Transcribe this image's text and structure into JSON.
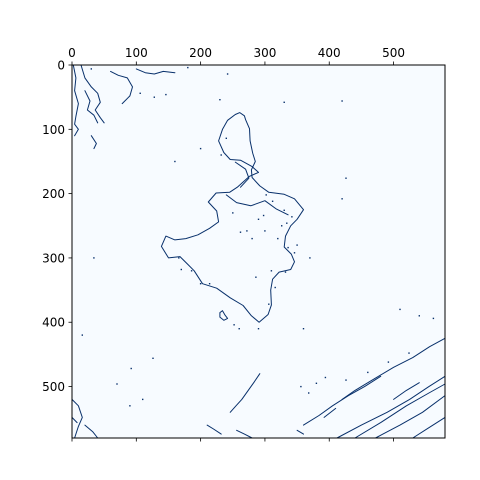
{
  "chart_data": {
    "type": "heatmap",
    "title": "",
    "xlabel": "",
    "ylabel": "",
    "xlim": [
      0,
      580
    ],
    "ylim": [
      580,
      0
    ],
    "x_ticks": [
      0,
      100,
      200,
      300,
      400,
      500
    ],
    "y_ticks": [
      0,
      100,
      200,
      300,
      400,
      500
    ],
    "x_tick_labels": [
      "0",
      "100",
      "200",
      "300",
      "400",
      "500"
    ],
    "y_tick_labels": [
      "0",
      "100",
      "200",
      "300",
      "400",
      "500"
    ],
    "x_axis_position": "top",
    "grid": false,
    "colormap": "Blues",
    "colors": {
      "background": "#f7fbff",
      "edge": "#08306b",
      "frame": "#000000"
    },
    "content": "binary edge-detection image (edge pixels dark blue on near-white)",
    "edge_paths": [
      {
        "name": "central-blob",
        "points": [
          [
            268,
            79
          ],
          [
            261,
            74
          ],
          [
            254,
            77
          ],
          [
            242,
            86
          ],
          [
            234,
            100
          ],
          [
            228,
            118
          ],
          [
            236,
            136
          ],
          [
            246,
            147
          ],
          [
            262,
            148
          ],
          [
            280,
            158
          ],
          [
            290,
            167
          ],
          [
            276,
            173
          ],
          [
            257,
            190
          ],
          [
            245,
            198
          ],
          [
            224,
            199
          ],
          [
            212,
            213
          ],
          [
            225,
            227
          ],
          [
            228,
            244
          ],
          [
            214,
            254
          ],
          [
            196,
            264
          ],
          [
            177,
            270
          ],
          [
            160,
            272
          ],
          [
            146,
            266
          ],
          [
            139,
            282
          ],
          [
            150,
            300
          ],
          [
            168,
            298
          ],
          [
            180,
            310
          ],
          [
            190,
            320
          ],
          [
            203,
            340
          ],
          [
            225,
            347
          ],
          [
            246,
            362
          ],
          [
            266,
            374
          ],
          [
            279,
            390
          ],
          [
            291,
            400
          ],
          [
            305,
            388
          ],
          [
            310,
            373
          ],
          [
            309,
            350
          ],
          [
            312,
            333
          ],
          [
            322,
            322
          ],
          [
            340,
            318
          ],
          [
            346,
            306
          ],
          [
            341,
            294
          ],
          [
            330,
            283
          ],
          [
            332,
            266
          ],
          [
            340,
            250
          ],
          [
            350,
            240
          ],
          [
            360,
            225
          ],
          [
            346,
            208
          ],
          [
            330,
            201
          ],
          [
            306,
            198
          ],
          [
            292,
            188
          ],
          [
            280,
            175
          ],
          [
            279,
            163
          ],
          [
            285,
            150
          ],
          [
            281,
            137
          ],
          [
            277,
            118
          ],
          [
            276,
            99
          ],
          [
            270,
            85
          ],
          [
            268,
            79
          ]
        ]
      },
      {
        "name": "blob-inner-1",
        "points": [
          [
            240,
            202
          ],
          [
            256,
            214
          ],
          [
            278,
            219
          ],
          [
            300,
            211
          ],
          [
            318,
            224
          ],
          [
            336,
            233
          ]
        ]
      },
      {
        "name": "blob-inner-2",
        "points": [
          [
            254,
            151
          ],
          [
            270,
            162
          ],
          [
            275,
            176
          ],
          [
            262,
            190
          ]
        ]
      },
      {
        "name": "blob-hole",
        "points": [
          [
            234,
            382
          ],
          [
            238,
            389
          ],
          [
            242,
            394
          ],
          [
            236,
            397
          ],
          [
            230,
            392
          ],
          [
            230,
            385
          ],
          [
            234,
            382
          ]
        ]
      },
      {
        "name": "top-left-1",
        "points": [
          [
            2,
            0
          ],
          [
            6,
            20
          ],
          [
            4,
            40
          ],
          [
            10,
            60
          ],
          [
            6,
            80
          ],
          [
            4,
            92
          ],
          [
            10,
            100
          ],
          [
            4,
            110
          ]
        ]
      },
      {
        "name": "top-left-2",
        "points": [
          [
            14,
            0
          ],
          [
            20,
            20
          ],
          [
            30,
            34
          ],
          [
            40,
            44
          ],
          [
            44,
            58
          ],
          [
            36,
            70
          ],
          [
            44,
            82
          ],
          [
            50,
            90
          ]
        ]
      },
      {
        "name": "top-left-3",
        "points": [
          [
            60,
            10
          ],
          [
            72,
            16
          ],
          [
            86,
            20
          ],
          [
            94,
            34
          ],
          [
            90,
            48
          ],
          [
            78,
            60
          ]
        ]
      },
      {
        "name": "top-left-4",
        "points": [
          [
            20,
            40
          ],
          [
            28,
            56
          ],
          [
            24,
            70
          ],
          [
            34,
            78
          ],
          [
            40,
            90
          ]
        ]
      },
      {
        "name": "top-left-5",
        "points": [
          [
            100,
            6
          ],
          [
            114,
            12
          ],
          [
            128,
            14
          ],
          [
            142,
            10
          ],
          [
            160,
            12
          ]
        ]
      },
      {
        "name": "top-left-6",
        "points": [
          [
            30,
            110
          ],
          [
            38,
            122
          ],
          [
            34,
            130
          ]
        ]
      },
      {
        "name": "bottom-right-1",
        "points": [
          [
            412,
            580
          ],
          [
            450,
            560
          ],
          [
            490,
            540
          ],
          [
            525,
            520
          ],
          [
            555,
            500
          ],
          [
            580,
            484
          ]
        ]
      },
      {
        "name": "bottom-right-2",
        "points": [
          [
            440,
            580
          ],
          [
            480,
            556
          ],
          [
            520,
            530
          ],
          [
            555,
            510
          ],
          [
            580,
            496
          ]
        ]
      },
      {
        "name": "bottom-right-3",
        "points": [
          [
            472,
            580
          ],
          [
            510,
            560
          ],
          [
            545,
            540
          ],
          [
            580,
            514
          ]
        ]
      },
      {
        "name": "bottom-right-4",
        "points": [
          [
            530,
            580
          ],
          [
            555,
            564
          ],
          [
            580,
            548
          ]
        ]
      },
      {
        "name": "bottom-right-5",
        "points": [
          [
            360,
            560
          ],
          [
            384,
            545
          ],
          [
            405,
            530
          ],
          [
            430,
            514
          ],
          [
            455,
            500
          ],
          [
            480,
            484
          ]
        ]
      },
      {
        "name": "bottom-right-6",
        "points": [
          [
            420,
            520
          ],
          [
            440,
            506
          ],
          [
            470,
            488
          ],
          [
            500,
            470
          ],
          [
            530,
            455
          ],
          [
            556,
            438
          ],
          [
            580,
            425
          ]
        ]
      },
      {
        "name": "bottom-right-7",
        "points": [
          [
            392,
            548
          ],
          [
            410,
            534
          ]
        ]
      },
      {
        "name": "bottom-right-8",
        "points": [
          [
            500,
            520
          ],
          [
            520,
            506
          ],
          [
            540,
            494
          ]
        ]
      },
      {
        "name": "bottom-left-1",
        "points": [
          [
            0,
            520
          ],
          [
            10,
            530
          ],
          [
            16,
            548
          ],
          [
            10,
            562
          ],
          [
            4,
            580
          ]
        ]
      },
      {
        "name": "bottom-left-2",
        "points": [
          [
            20,
            560
          ],
          [
            32,
            570
          ],
          [
            40,
            580
          ]
        ]
      },
      {
        "name": "bottom-left-3",
        "points": [
          [
            0,
            548
          ],
          [
            8,
            556
          ]
        ]
      },
      {
        "name": "bottom-mid-1",
        "points": [
          [
            292,
            480
          ],
          [
            284,
            492
          ],
          [
            274,
            506
          ],
          [
            264,
            520
          ],
          [
            255,
            530
          ],
          [
            246,
            540
          ]
        ]
      },
      {
        "name": "bottom-mid-2",
        "points": [
          [
            256,
            568
          ],
          [
            268,
            574
          ],
          [
            280,
            580
          ]
        ]
      },
      {
        "name": "bottom-mid-3",
        "points": [
          [
            210,
            560
          ],
          [
            220,
            566
          ],
          [
            232,
            574
          ]
        ]
      },
      {
        "name": "bottom-mid-4",
        "points": [
          [
            350,
            568
          ],
          [
            360,
            574
          ]
        ]
      }
    ],
    "edge_specks": [
      [
        30,
        6
      ],
      [
        106,
        44
      ],
      [
        180,
        4
      ],
      [
        146,
        46
      ],
      [
        128,
        50
      ],
      [
        242,
        14
      ],
      [
        230,
        54
      ],
      [
        330,
        58
      ],
      [
        420,
        56
      ],
      [
        160,
        150
      ],
      [
        240,
        114
      ],
      [
        232,
        140
      ],
      [
        200,
        130
      ],
      [
        250,
        230
      ],
      [
        272,
        258
      ],
      [
        280,
        270
      ],
      [
        300,
        258
      ],
      [
        320,
        270
      ],
      [
        166,
        300
      ],
      [
        170,
        318
      ],
      [
        186,
        320
      ],
      [
        262,
        260
      ],
      [
        200,
        340
      ],
      [
        214,
        340
      ],
      [
        252,
        404
      ],
      [
        260,
        410
      ],
      [
        290,
        410
      ],
      [
        306,
        372
      ],
      [
        316,
        346
      ],
      [
        310,
        320
      ],
      [
        336,
        284
      ],
      [
        350,
        280
      ],
      [
        346,
        292
      ],
      [
        326,
        250
      ],
      [
        334,
        246
      ],
      [
        342,
        236
      ],
      [
        290,
        240
      ],
      [
        298,
        234
      ],
      [
        330,
        226
      ],
      [
        312,
        212
      ],
      [
        302,
        202
      ],
      [
        370,
        300
      ],
      [
        332,
        322
      ],
      [
        126,
        456
      ],
      [
        70,
        496
      ],
      [
        92,
        472
      ],
      [
        110,
        520
      ],
      [
        90,
        530
      ],
      [
        16,
        420
      ],
      [
        34,
        300
      ],
      [
        360,
        410
      ],
      [
        286,
        330
      ],
      [
        420,
        208
      ],
      [
        426,
        176
      ],
      [
        510,
        380
      ],
      [
        540,
        390
      ],
      [
        562,
        394
      ],
      [
        356,
        500
      ],
      [
        368,
        510
      ],
      [
        380,
        495
      ],
      [
        394,
        486
      ],
      [
        426,
        490
      ],
      [
        460,
        478
      ],
      [
        492,
        462
      ],
      [
        524,
        448
      ]
    ]
  }
}
